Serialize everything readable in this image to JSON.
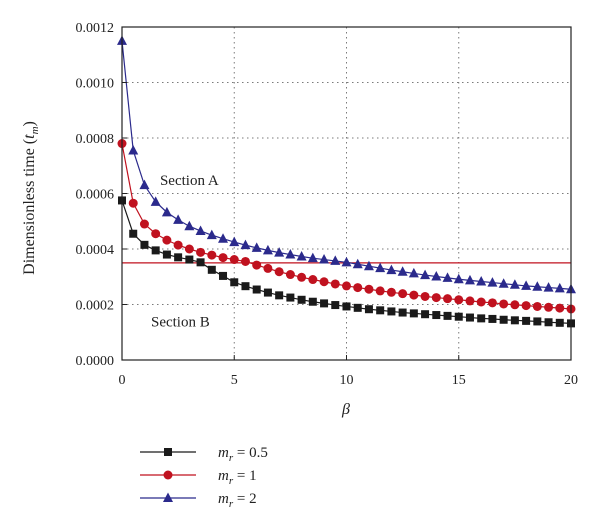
{
  "chart_data": {
    "type": "line",
    "title": "",
    "xlabel": "β",
    "ylabel": "Dimensionless time (t_m)",
    "ylabel_parts": {
      "main": "Dimensionless time (",
      "var": "t",
      "sub": "m",
      "close": ")"
    },
    "xlim": [
      0,
      20
    ],
    "ylim": [
      0,
      0.0012
    ],
    "xticks": [
      0,
      5,
      10,
      15,
      20
    ],
    "yticks": [
      "0.0000",
      "0.0002",
      "0.0004",
      "0.0006",
      "0.0008",
      "0.0010",
      "0.0012"
    ],
    "grid": true,
    "threshold": {
      "y": 0.00035,
      "color": "#c0121f"
    },
    "annotations": [
      {
        "id": "section-a",
        "text": "Section A",
        "x": 3.0,
        "y": 0.00063
      },
      {
        "id": "section-b",
        "text": "Section B",
        "x": 2.6,
        "y": 0.00012
      }
    ],
    "legend_position": "below",
    "series": [
      {
        "name": "m_r = 0.5",
        "legend": {
          "var": "m",
          "sub": "r",
          "rest": " = 0.5"
        },
        "color": "#1a1a1a",
        "marker": "square",
        "x": [
          0,
          0.5,
          1,
          1.5,
          2,
          2.5,
          3,
          3.5,
          4,
          4.5,
          5,
          5.5,
          6,
          6.5,
          7,
          7.5,
          8,
          8.5,
          9,
          9.5,
          10,
          10.5,
          11,
          11.5,
          12,
          12.5,
          13,
          13.5,
          14,
          14.5,
          15,
          15.5,
          16,
          16.5,
          17,
          17.5,
          18,
          18.5,
          19,
          19.5,
          20
        ],
        "y": [
          0.000575,
          0.000455,
          0.000415,
          0.000395,
          0.00038,
          0.00037,
          0.000362,
          0.000352,
          0.000325,
          0.000303,
          0.00028,
          0.000266,
          0.000254,
          0.000243,
          0.000233,
          0.000225,
          0.000217,
          0.00021,
          0.000204,
          0.000198,
          0.000193,
          0.000188,
          0.000183,
          0.000179,
          0.000175,
          0.000171,
          0.000168,
          0.000165,
          0.000162,
          0.000159,
          0.000156,
          0.000153,
          0.00015,
          0.000148,
          0.000145,
          0.000143,
          0.000141,
          0.000139,
          0.000136,
          0.000134,
          0.000132
        ]
      },
      {
        "name": "m_r = 1",
        "legend": {
          "var": "m",
          "sub": "r",
          "rest": " = 1"
        },
        "color": "#c0121f",
        "marker": "circle",
        "x": [
          0,
          0.5,
          1,
          1.5,
          2,
          2.5,
          3,
          3.5,
          4,
          4.5,
          5,
          5.5,
          6,
          6.5,
          7,
          7.5,
          8,
          8.5,
          9,
          9.5,
          10,
          10.5,
          11,
          11.5,
          12,
          12.5,
          13,
          13.5,
          14,
          14.5,
          15,
          15.5,
          16,
          16.5,
          17,
          17.5,
          18,
          18.5,
          19,
          19.5,
          20
        ],
        "y": [
          0.00078,
          0.000565,
          0.00049,
          0.000455,
          0.000432,
          0.000414,
          0.0004,
          0.000388,
          0.000378,
          0.000369,
          0.000362,
          0.000355,
          0.000342,
          0.00033,
          0.000318,
          0.000308,
          0.000298,
          0.00029,
          0.000282,
          0.000274,
          0.000267,
          0.000261,
          0.000255,
          0.000249,
          0.000244,
          0.000239,
          0.000234,
          0.000229,
          0.000225,
          0.000221,
          0.000217,
          0.000213,
          0.000209,
          0.000206,
          0.000202,
          0.000199,
          0.000196,
          0.000193,
          0.00019,
          0.000187,
          0.000184
        ]
      },
      {
        "name": "m_r = 2",
        "legend": {
          "var": "m",
          "sub": "r",
          "rest": " = 2"
        },
        "color": "#2b2a8c",
        "marker": "triangle",
        "x": [
          0,
          0.5,
          1,
          1.5,
          2,
          2.5,
          3,
          3.5,
          4,
          4.5,
          5,
          5.5,
          6,
          6.5,
          7,
          7.5,
          8,
          8.5,
          9,
          9.5,
          10,
          10.5,
          11,
          11.5,
          12,
          12.5,
          13,
          13.5,
          14,
          14.5,
          15,
          15.5,
          16,
          16.5,
          17,
          17.5,
          18,
          18.5,
          19,
          19.5,
          20
        ],
        "y": [
          0.00115,
          0.000755,
          0.00063,
          0.00057,
          0.000532,
          0.000505,
          0.000482,
          0.000465,
          0.00045,
          0.000437,
          0.000425,
          0.000414,
          0.000404,
          0.000395,
          0.000387,
          0.00038,
          0.000373,
          0.000367,
          0.000362,
          0.000357,
          0.000352,
          0.000345,
          0.000338,
          0.000331,
          0.000324,
          0.000318,
          0.000312,
          0.000306,
          0.000301,
          0.000296,
          0.000291,
          0.000287,
          0.000283,
          0.000279,
          0.000275,
          0.000271,
          0.000267,
          0.000264,
          0.000261,
          0.000258,
          0.000255
        ]
      }
    ]
  }
}
